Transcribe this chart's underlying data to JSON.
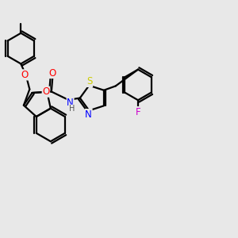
{
  "background_color": "#e8e8e8",
  "bond_color": "#000000",
  "bond_width": 1.6,
  "atom_colors": {
    "O": "#ff0000",
    "N": "#0000ff",
    "S": "#cccc00",
    "F": "#cc00cc",
    "H": "#555555",
    "C": "#000000"
  },
  "font_size": 8.5,
  "figsize": [
    3.0,
    3.0
  ],
  "dpi": 100
}
